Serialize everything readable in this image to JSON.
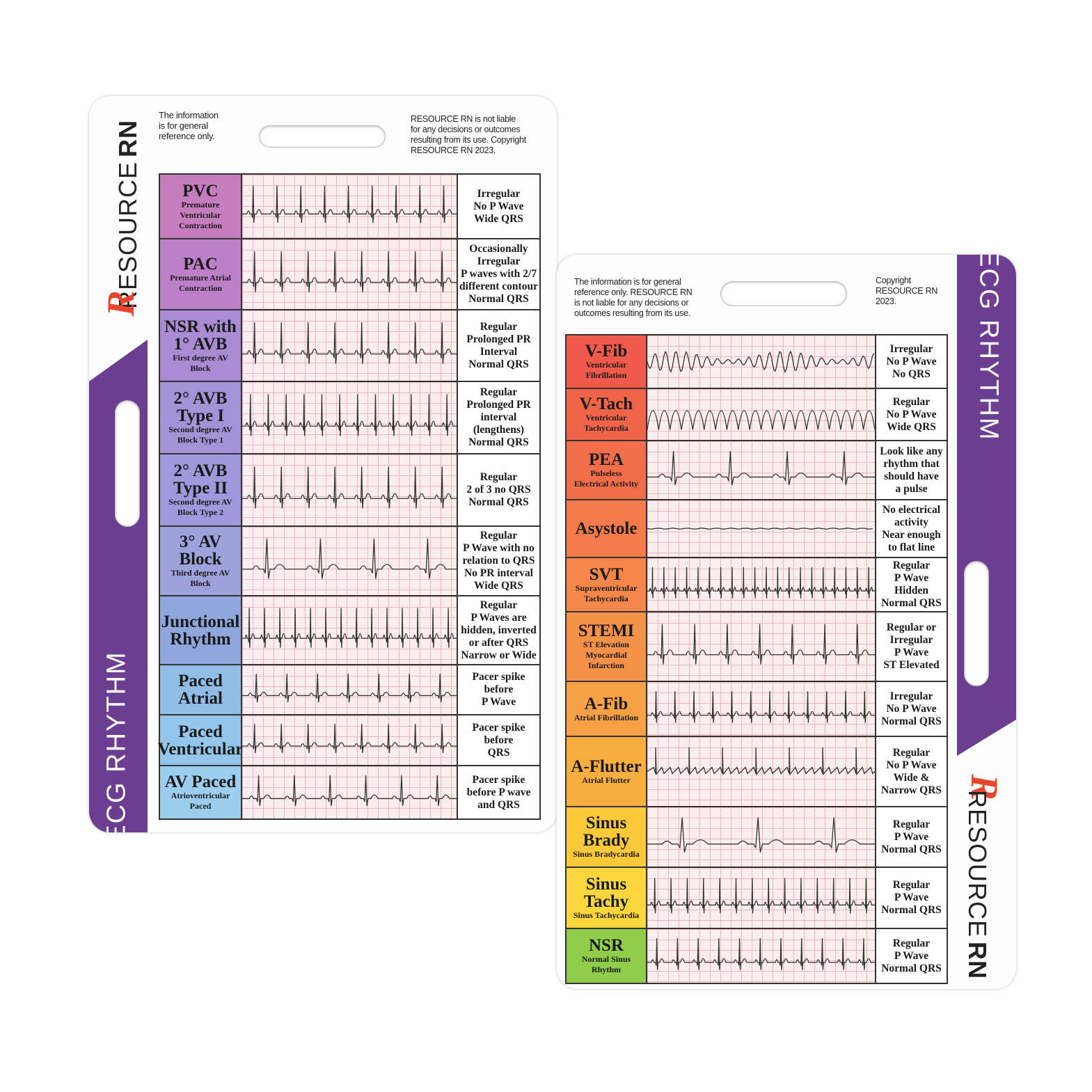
{
  "cards": [
    {
      "brand": "RESOURCE",
      "brand_bold": "RN",
      "logo": "R",
      "side_title": "ECG RHYTHM",
      "disclaimer_left": [
        "The information",
        "is for general",
        "reference only."
      ],
      "disclaimer_right": [
        "RESOURCE RN is not liable",
        "for any decisions or outcomes",
        "resulting from its use. Copyright",
        "RESOURCE RN 2023."
      ],
      "rows": [
        {
          "name": [
            "PVC"
          ],
          "subtitle": [
            "Premature",
            "Ventricular",
            "Contraction"
          ],
          "description": [
            "Irregular",
            "No P Wave",
            "Wide QRS"
          ],
          "color": "#c57dbd"
        },
        {
          "name": [
            "PAC"
          ],
          "subtitle": [
            "Premature Atrial",
            "Contraction"
          ],
          "description": [
            "Occasionally",
            "Irregular",
            "P waves with 2/7",
            "different contour",
            "Normal QRS"
          ],
          "color": "#bd80c8"
        },
        {
          "name": [
            "NSR with",
            "1° AVB"
          ],
          "subtitle": [
            "First degree AV",
            "Block"
          ],
          "description": [
            "Regular",
            "Prolonged PR",
            "Interval",
            "Normal QRS"
          ],
          "color": "#a98bd4"
        },
        {
          "name": [
            "2° AVB",
            "Type I"
          ],
          "subtitle": [
            "Second degree AV",
            "Block Type 1"
          ],
          "description": [
            "Regular",
            "Prolonged PR",
            "interval",
            "(lengthens)",
            "Normal QRS"
          ],
          "color": "#a592d6"
        },
        {
          "name": [
            "2° AVB",
            "Type II"
          ],
          "subtitle": [
            "Second degree AV",
            "Block Type 2"
          ],
          "description": [
            "Regular",
            "2 of 3 no QRS",
            "Normal QRS"
          ],
          "color": "#9f98da"
        },
        {
          "name": [
            "3° AV",
            "Block"
          ],
          "subtitle": [
            "Third degree AV",
            "Block"
          ],
          "description": [
            "Regular",
            "P Wave with no",
            "relation to QRS",
            "No PR interval",
            "Wide QRS"
          ],
          "color": "#9da2dc"
        },
        {
          "name": [
            "Junctional",
            "Rhythm"
          ],
          "subtitle": [],
          "description": [
            "Regular",
            "P Waves are",
            "hidden, inverted",
            "or after QRS",
            "Narrow or Wide"
          ],
          "color": "#8fa6dd"
        },
        {
          "name": [
            "Paced",
            "Atrial"
          ],
          "subtitle": [],
          "description": [
            "Pacer spike",
            "before",
            "P Wave"
          ],
          "color": "#8fbde6"
        },
        {
          "name": [
            "Paced",
            "Ventricular"
          ],
          "subtitle": [],
          "description": [
            "Pacer spike",
            "before",
            "QRS"
          ],
          "color": "#93c6ea"
        },
        {
          "name": [
            "AV Paced"
          ],
          "subtitle": [
            "Atrioventricular",
            "Paced"
          ],
          "description": [
            "Pacer spike",
            "before P wave",
            "and QRS"
          ],
          "color": "#9ccdee"
        }
      ]
    },
    {
      "brand": "RESOURCE",
      "brand_bold": "RN",
      "logo": "R",
      "side_title": "ECG RHYTHM",
      "disclaimer_left": [
        "The information is for general",
        "reference only. RESOURCE RN",
        "is not liable for any decisions or",
        "outcomes resulting from its use."
      ],
      "disclaimer_right": [
        "Copyright",
        "RESOURCE RN",
        "2023."
      ],
      "rows": [
        {
          "name": [
            "V-Fib"
          ],
          "subtitle": [
            "Ventricular",
            "Fibrillation"
          ],
          "description": [
            "Irregular",
            "No P Wave",
            "No QRS"
          ],
          "color": "#ef5a4a"
        },
        {
          "name": [
            "V-Tach"
          ],
          "subtitle": [
            "Ventricular",
            "Tachycardia"
          ],
          "description": [
            "Regular",
            "No P Wave",
            "Wide QRS"
          ],
          "color": "#f06548"
        },
        {
          "name": [
            "PEA"
          ],
          "subtitle": [
            "Pulseless",
            "Electrical Activity"
          ],
          "description": [
            "Look like any",
            "rhythm that",
            "should have",
            "a pulse"
          ],
          "color": "#f26e4a"
        },
        {
          "name": [
            "Asystole"
          ],
          "subtitle": [],
          "description": [
            "No electrical",
            "activity",
            "Near enough",
            "to flat line"
          ],
          "color": "#f47a4c"
        },
        {
          "name": [
            "SVT"
          ],
          "subtitle": [
            "Supraventricular",
            "Tachycardia"
          ],
          "description": [
            "Regular",
            "P Wave",
            "Hidden",
            "Normal QRS"
          ],
          "color": "#f5874a"
        },
        {
          "name": [
            "STEMI"
          ],
          "subtitle": [
            "ST Elevation",
            "Myocardial",
            "Infarction"
          ],
          "description": [
            "Regular or",
            "Irregular",
            "P Wave",
            "ST Elevated"
          ],
          "color": "#f69149"
        },
        {
          "name": [
            "A-Fib"
          ],
          "subtitle": [
            "Atrial Fibrillation"
          ],
          "description": [
            "Irregular",
            "No P Wave",
            "Normal QRS"
          ],
          "color": "#f7a045"
        },
        {
          "name": [
            "A-Flutter"
          ],
          "subtitle": [
            "Atrial Flutter"
          ],
          "description": [
            "Regular",
            "No P Wave",
            "Wide &",
            "Narrow QRS"
          ],
          "color": "#f8ae3f"
        },
        {
          "name": [
            "Sinus",
            "Brady"
          ],
          "subtitle": [
            "Sinus Bradycardia"
          ],
          "description": [
            "Regular",
            "P Wave",
            "Normal QRS"
          ],
          "color": "#fbc93a"
        },
        {
          "name": [
            "Sinus",
            "Tachy"
          ],
          "subtitle": [
            "Sinus Tachycardia"
          ],
          "description": [
            "Regular",
            "P Wave",
            "Normal QRS"
          ],
          "color": "#fbd63c"
        },
        {
          "name": [
            "NSR"
          ],
          "subtitle": [
            "Normal Sinus",
            "Rhythm"
          ],
          "description": [
            "Regular",
            "P Wave",
            "Normal QRS"
          ],
          "color": "#8fcd4a"
        }
      ]
    }
  ]
}
